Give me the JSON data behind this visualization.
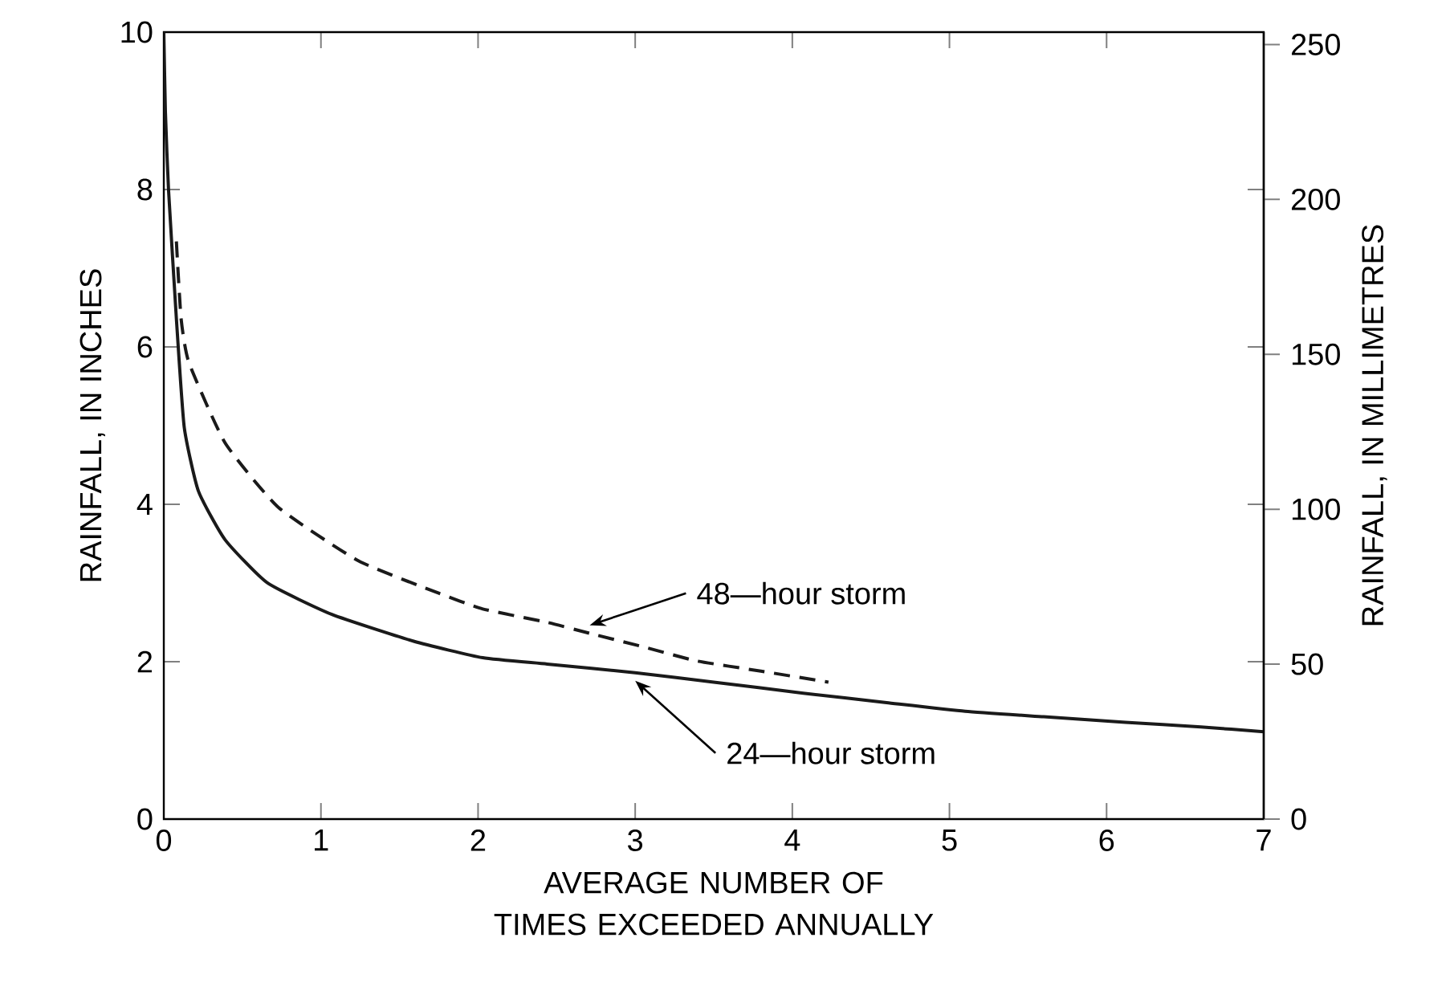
{
  "chart_data": {
    "type": "line",
    "xlabel": "AVERAGE NUMBER OF TIMES EXCEEDED ANNUALLY",
    "ylabel": "RAINFALL, IN INCHES",
    "y2label": "RAINFALL, IN MILLIMETRES",
    "xlim": [
      0,
      7
    ],
    "xticks": [
      0,
      1,
      2,
      3,
      4,
      5,
      6,
      7
    ],
    "ylim": [
      0,
      10
    ],
    "yticks": [
      0,
      2,
      4,
      6,
      8,
      10
    ],
    "y2lim": [
      0,
      254
    ],
    "y2ticks": [
      0,
      50,
      100,
      150,
      200,
      250
    ],
    "marker": "none",
    "series": [
      {
        "name": "24—hour storm",
        "color": "#1a1a1a",
        "line_style": "solid",
        "x": [
          0.0,
          0.01,
          0.03,
          0.08,
          0.13,
          0.22,
          0.39,
          0.66,
          1.07,
          1.59,
          2.03,
          2.44,
          3.0,
          3.5,
          4.07,
          4.6,
          5.1,
          5.6,
          6.12,
          6.6,
          7.0
        ],
        "values": [
          10.0,
          9.0,
          8.0,
          6.36,
          4.98,
          4.17,
          3.55,
          3.0,
          2.6,
          2.26,
          2.05,
          1.97,
          1.86,
          1.74,
          1.6,
          1.48,
          1.37,
          1.3,
          1.23,
          1.17,
          1.11
        ]
      },
      {
        "name": "48—hour storm",
        "color": "#1a1a1a",
        "line_style": "dashed",
        "x": [
          0.08,
          0.11,
          0.16,
          0.39,
          0.73,
          1.24,
          1.75,
          2.03,
          2.44,
          2.71,
          3.05,
          3.39,
          3.8,
          4.23
        ],
        "values": [
          7.34,
          6.36,
          5.8,
          4.78,
          3.96,
          3.28,
          2.87,
          2.67,
          2.5,
          2.36,
          2.19,
          2.01,
          1.88,
          1.74
        ]
      }
    ]
  }
}
